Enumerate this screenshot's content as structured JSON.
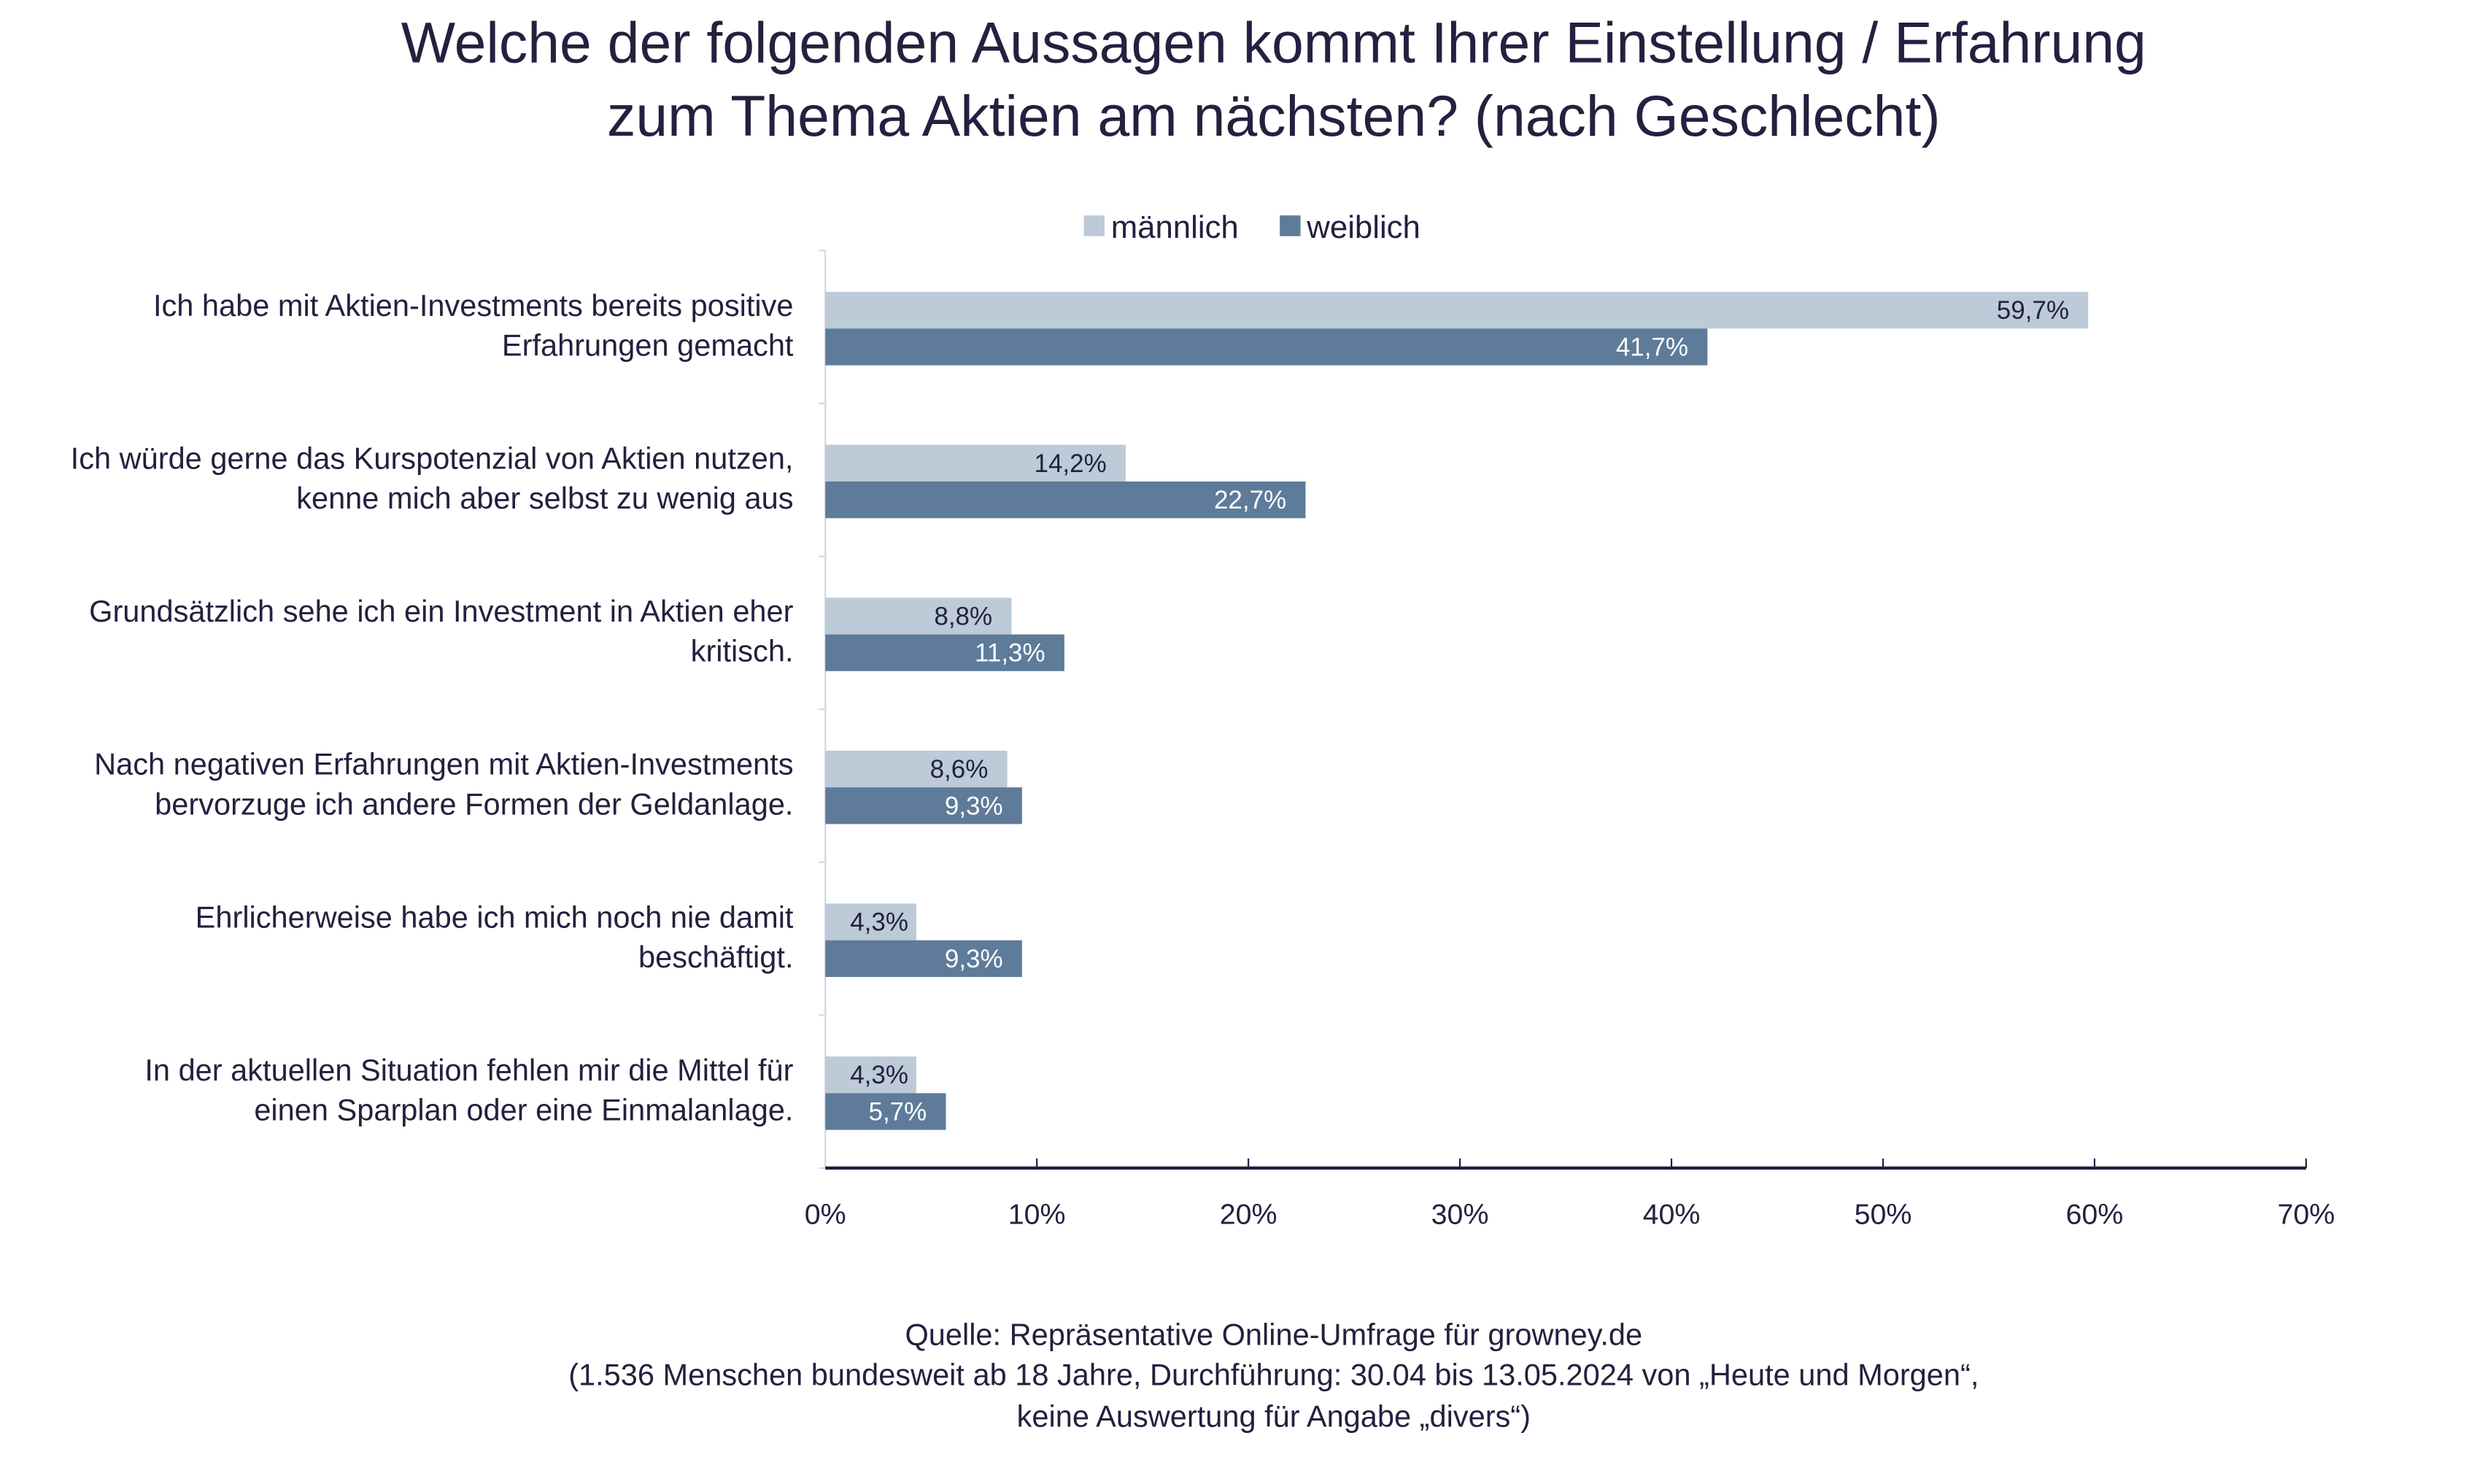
{
  "chart_data": {
    "type": "bar",
    "orientation": "horizontal",
    "title": [
      "Welche der folgenden Aussagen kommt Ihrer Einstellung / Erfahrung",
      "zum Thema Aktien am nächsten? (nach Geschlecht)"
    ],
    "categories": [
      [
        "Ich habe mit Aktien-Investments bereits positive",
        "Erfahrungen gemacht"
      ],
      [
        "Ich würde gerne das Kurspotenzial von Aktien nutzen,",
        "kenne mich aber selbst zu wenig aus"
      ],
      [
        "Grundsätzlich sehe ich ein Investment in Aktien eher",
        "kritisch."
      ],
      [
        "Nach negativen Erfahrungen mit Aktien-Investments",
        "bervorzuge ich andere Formen der Geldanlage."
      ],
      [
        "Ehrlicherweise habe ich mich noch nie damit",
        "beschäftigt."
      ],
      [
        "In der aktuellen Situation fehlen mir die Mittel für",
        "einen Sparplan oder eine Einmalanlage."
      ]
    ],
    "series": [
      {
        "name": "männlich",
        "color": "#BDCAD7",
        "label_color": "#22213f",
        "values": [
          59.7,
          14.2,
          8.8,
          8.6,
          4.3,
          4.3
        ],
        "labels": [
          "59,7%",
          "14,2%",
          "8,8%",
          "8,6%",
          "4,3%",
          "4,3%"
        ]
      },
      {
        "name": "weiblich",
        "color": "#5E7B99",
        "label_color": "#ffffff",
        "values": [
          41.7,
          22.7,
          11.3,
          9.3,
          9.3,
          5.7
        ],
        "labels": [
          "41,7%",
          "22,7%",
          "11,3%",
          "9,3%",
          "9,3%",
          "5,7%"
        ]
      }
    ],
    "xlim": [
      0,
      70
    ],
    "xticks": [
      0,
      10,
      20,
      30,
      40,
      50,
      60,
      70
    ],
    "xtick_labels": [
      "0%",
      "10%",
      "20%",
      "30%",
      "40%",
      "50%",
      "60%",
      "70%"
    ],
    "grid": false,
    "legend_position": "top"
  },
  "source": [
    "Quelle: Repräsentative Online-Umfrage für growney.de",
    "(1.536 Menschen bundesweit ab 18 Jahre, Durchführung: 30.04 bis 13.05.2024 von „Heute und Morgen“,",
    "keine Auswertung für Angabe „divers“)"
  ]
}
